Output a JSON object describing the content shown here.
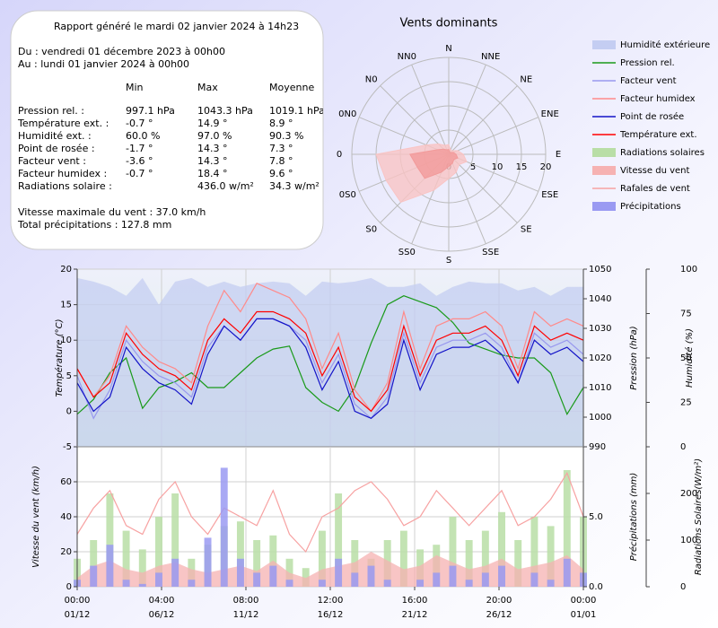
{
  "report": {
    "title": "Rapport généré le mardi 02 janvier 2024 à 14h23",
    "from": "Du : vendredi 01 décembre 2023 à 00h00",
    "to": "Au : lundi 01 janvier 2024 à 00h00",
    "columns": [
      "Min",
      "Max",
      "Moyenne"
    ],
    "rows": [
      {
        "label": "Pression rel. :",
        "values": [
          "997.1 hPa",
          "1043.3 hPa",
          "1019.1 hPa"
        ]
      },
      {
        "label": "Température ext. :",
        "values": [
          "-0.7 °",
          "14.9 °",
          "8.9 °"
        ]
      },
      {
        "label": "Humidité ext. :",
        "values": [
          "60.0 %",
          "97.0 %",
          "90.3 %"
        ]
      },
      {
        "label": "Point de rosée :",
        "values": [
          "-1.7 °",
          "14.3 °",
          "7.3 °"
        ]
      },
      {
        "label": "Facteur vent :",
        "values": [
          "-3.6 °",
          "14.3 °",
          "7.8 °"
        ]
      },
      {
        "label": "Facteur humidex :",
        "values": [
          "-0.7 °",
          "18.4 °",
          "9.6 °"
        ]
      },
      {
        "label": "Radiations solaire :",
        "values": [
          null,
          "436.0 w/m²",
          "34.3 w/m²"
        ]
      }
    ],
    "notes": [
      "Vitesse maximale du vent : 37.0 km/h",
      "Total précipitations : 127.8 mm"
    ]
  },
  "chart_data": [
    {
      "type": "radar",
      "title": "Vents dominants",
      "categories": [
        "N",
        "NNE",
        "NE",
        "ENE",
        "E",
        "ESE",
        "SE",
        "SSE",
        "S",
        "SS0",
        "S0",
        "0S0",
        "0",
        "0N0",
        "N0",
        "NN0"
      ],
      "rlim": [
        0,
        20
      ],
      "rticks": [
        0,
        5,
        10,
        15,
        20
      ],
      "series": [
        {
          "color": "#f9c4c4",
          "values": [
            2,
            1,
            1,
            2,
            3,
            4,
            3,
            4,
            5,
            8,
            14,
            14,
            15,
            5,
            3,
            2
          ]
        },
        {
          "color": "#f29a9a",
          "values": [
            1,
            0.5,
            0.5,
            1,
            1.5,
            2,
            1.5,
            2,
            2.5,
            4,
            7,
            7,
            8,
            2.5,
            1.5,
            1
          ]
        }
      ]
    },
    {
      "type": "line",
      "x": [
        0,
        1,
        2,
        3,
        4,
        5,
        6,
        7,
        8,
        9,
        10,
        11,
        12,
        13,
        14,
        15,
        16,
        17,
        18,
        19,
        20,
        21,
        22,
        23,
        24,
        25,
        26,
        27,
        28,
        29,
        30,
        31
      ],
      "xlim": [
        0,
        31
      ],
      "xticks": [
        0,
        5.1667,
        10.3333,
        15.5,
        20.6667,
        25.8333,
        31
      ],
      "ylim": [
        -5,
        20
      ],
      "yticks": [
        -5,
        0,
        5,
        10,
        15,
        20
      ],
      "ylabel": "Température (°C)",
      "y2lim": [
        990,
        1050
      ],
      "y2ticks": [
        990,
        1000,
        1010,
        1020,
        1030,
        1040,
        1050
      ],
      "y2label": "Pression (hPa)",
      "y3lim": [
        0,
        100
      ],
      "y3ticks": [
        0,
        25,
        50,
        75,
        100
      ],
      "y3label": "Humidité (%)",
      "grid": true,
      "series": [
        {
          "name": "Humidité extérieure",
          "kind": "area",
          "axis": "y3",
          "color": "#c4cdf2",
          "values": [
            95,
            93,
            90,
            85,
            95,
            80,
            93,
            95,
            90,
            93,
            90,
            92,
            93,
            92,
            85,
            93,
            92,
            93,
            95,
            90,
            90,
            92,
            85,
            90,
            93,
            92,
            92,
            88,
            90,
            85,
            90,
            90
          ]
        },
        {
          "name": "Pression rel.",
          "kind": "line",
          "axis": "y2",
          "color": "#1a9a1a",
          "values": [
            1001,
            1006,
            1015,
            1020,
            1003,
            1010,
            1012,
            1015,
            1010,
            1010,
            1015,
            1020,
            1023,
            1024,
            1010,
            1005,
            1002,
            1010,
            1025,
            1038,
            1041,
            1039,
            1037,
            1032,
            1025,
            1023,
            1021,
            1020,
            1020,
            1015,
            1001,
            1010
          ]
        },
        {
          "name": "Facteur vent",
          "kind": "line",
          "axis": "y",
          "color": "#9898ee",
          "values": [
            5,
            -1,
            3,
            10,
            7,
            5,
            4,
            2,
            9,
            12,
            10,
            13,
            13,
            12,
            10,
            4,
            8,
            1,
            -1,
            2,
            11,
            4,
            9,
            10,
            10,
            11,
            9,
            4,
            11,
            9,
            10,
            8
          ]
        },
        {
          "name": "Facteur humidex",
          "kind": "line",
          "axis": "y",
          "color": "#ff8a8a",
          "values": [
            6,
            2,
            5,
            12,
            9,
            7,
            6,
            4,
            12,
            17,
            14,
            18,
            17,
            16,
            13,
            6,
            11,
            3,
            0,
            4,
            14,
            6,
            12,
            13,
            13,
            14,
            12,
            6,
            14,
            12,
            13,
            12
          ]
        },
        {
          "name": "Point de rosée",
          "kind": "line",
          "axis": "y",
          "color": "#1414c8",
          "values": [
            4,
            0,
            2,
            9,
            6,
            4,
            3,
            1,
            8,
            12,
            10,
            13,
            13,
            12,
            9,
            3,
            7,
            0,
            -1,
            1,
            10,
            3,
            8,
            9,
            9,
            10,
            8,
            4,
            10,
            8,
            9,
            7
          ]
        },
        {
          "name": "Température ext.",
          "kind": "line",
          "axis": "y",
          "color": "#ff0000",
          "values": [
            6,
            2,
            4,
            11,
            8,
            6,
            5,
            3,
            10,
            13,
            11,
            14,
            14,
            13,
            11,
            5,
            9,
            2,
            0,
            3,
            12,
            5,
            10,
            11,
            11,
            12,
            10,
            5,
            12,
            10,
            11,
            10
          ]
        }
      ]
    },
    {
      "type": "bar",
      "x": [
        0,
        1,
        2,
        3,
        4,
        5,
        6,
        7,
        8,
        9,
        10,
        11,
        12,
        13,
        14,
        15,
        16,
        17,
        18,
        19,
        20,
        21,
        22,
        23,
        24,
        25,
        26,
        27,
        28,
        29,
        30,
        31
      ],
      "xlim": [
        0,
        31
      ],
      "xticks": [
        {
          "value": 0,
          "label": "00:00"
        },
        {
          "value": 5.1667,
          "label": "04:00"
        },
        {
          "value": 10.3333,
          "label": "08:00"
        },
        {
          "value": 15.5,
          "label": "12:00"
        },
        {
          "value": 20.6667,
          "label": "16:00"
        },
        {
          "value": 25.8333,
          "label": "20:00"
        },
        {
          "value": 31,
          "label": "00:00"
        }
      ],
      "xtick_dates": [
        "01/12",
        "06/12",
        "11/12",
        "16/12",
        "21/12",
        "26/12",
        "01/01"
      ],
      "ylim": [
        0,
        80
      ],
      "yticks": [
        0,
        20,
        40,
        60
      ],
      "ylabel": "Vitesse du vent (km/h)",
      "y2lim": [
        0,
        10
      ],
      "y2ticks": [
        {
          "value": 0,
          "label": "0.0"
        },
        {
          "value": 5,
          "label": "5.0"
        }
      ],
      "y2label": "Précipitations (mm)",
      "y3lim": [
        0,
        300
      ],
      "y3ticks": [
        0,
        100,
        200
      ],
      "y3label": "Radiations Solaires(W/m²)",
      "grid": true,
      "series": [
        {
          "name": "Radiations solaires",
          "kind": "bar",
          "axis": "y3",
          "color": "#b9dea6",
          "values": [
            60,
            100,
            200,
            120,
            80,
            150,
            200,
            60,
            90,
            130,
            140,
            100,
            110,
            60,
            40,
            120,
            200,
            100,
            60,
            100,
            120,
            80,
            90,
            150,
            100,
            120,
            160,
            100,
            150,
            130,
            250,
            150
          ]
        },
        {
          "name": "Vitesse du vent",
          "kind": "area",
          "axis": "y",
          "color": "#f6b2b2",
          "values": [
            5,
            12,
            15,
            10,
            8,
            12,
            14,
            10,
            8,
            10,
            12,
            9,
            15,
            8,
            5,
            10,
            12,
            14,
            20,
            15,
            10,
            12,
            18,
            14,
            10,
            12,
            16,
            10,
            12,
            14,
            18,
            10
          ]
        },
        {
          "name": "Rafales de vent",
          "kind": "line",
          "axis": "y",
          "color": "#f7a2a2",
          "values": [
            30,
            45,
            55,
            35,
            30,
            50,
            60,
            40,
            30,
            45,
            40,
            35,
            55,
            30,
            20,
            40,
            45,
            55,
            60,
            50,
            35,
            40,
            55,
            45,
            35,
            45,
            55,
            35,
            40,
            50,
            65,
            40
          ]
        },
        {
          "name": "Précipitations",
          "kind": "bar",
          "axis": "y2",
          "color": "#9a9af2",
          "values": [
            0.5,
            1.5,
            3,
            0.5,
            0.2,
            1,
            2,
            0.5,
            3.5,
            8.5,
            2,
            1,
            1.5,
            0.5,
            0,
            0.5,
            2,
            1,
            1.5,
            0.5,
            0,
            0.5,
            1,
            1.5,
            0.5,
            1,
            1.5,
            0,
            1,
            0.5,
            2,
            1
          ]
        }
      ]
    }
  ]
}
